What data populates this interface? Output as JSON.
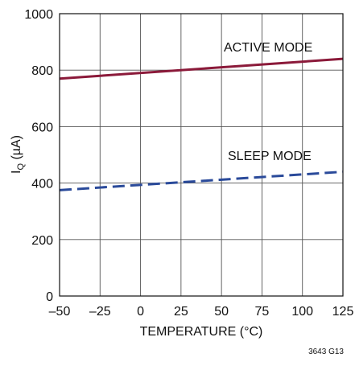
{
  "chart_data": {
    "type": "line",
    "xlabel": "TEMPERATURE (°C)",
    "ylabel": "I",
    "ylabel_sub": "Q",
    "ylabel_unit": " (µA)",
    "xlim": [
      -50,
      125
    ],
    "ylim": [
      0,
      1000
    ],
    "x_ticks": [
      -50,
      -25,
      0,
      25,
      50,
      75,
      100,
      125
    ],
    "x_tick_labels": [
      "–50",
      "–25",
      "0",
      "25",
      "50",
      "75",
      "100",
      "125"
    ],
    "y_ticks": [
      0,
      200,
      400,
      600,
      800,
      1000
    ],
    "y_tick_labels": [
      "0",
      "200",
      "400",
      "600",
      "800",
      "1000"
    ],
    "grid": true,
    "series": [
      {
        "name": "ACTIVE MODE",
        "x": [
          -50,
          125
        ],
        "values": [
          770,
          840
        ],
        "color": "#8b1a3a",
        "style": "solid"
      },
      {
        "name": "SLEEP MODE",
        "x": [
          -50,
          125
        ],
        "values": [
          375,
          440
        ],
        "color": "#2a4a9a",
        "style": "dashed"
      }
    ],
    "annotations": [
      "ACTIVE MODE",
      "SLEEP MODE"
    ],
    "figure_id": "3643 G13"
  }
}
